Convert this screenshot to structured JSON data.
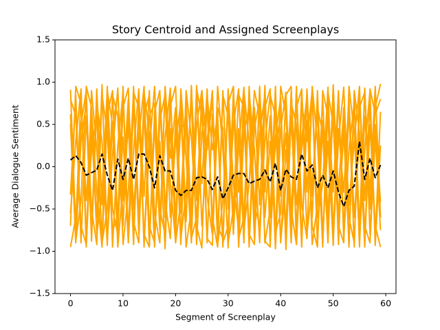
{
  "chart_data": {
    "type": "line",
    "title": "Story Centroid and Assigned Screenplays",
    "x_label": "Segment of Screenplay",
    "y_label": "Average Dialogue Sentiment",
    "x": [
      0,
      1,
      2,
      3,
      4,
      5,
      6,
      7,
      8,
      9,
      10,
      11,
      12,
      13,
      14,
      15,
      16,
      17,
      18,
      19,
      20,
      21,
      22,
      23,
      24,
      25,
      26,
      27,
      28,
      29,
      30,
      31,
      32,
      33,
      34,
      35,
      36,
      37,
      38,
      39,
      40,
      41,
      42,
      43,
      44,
      45,
      46,
      47,
      48,
      49,
      50,
      51,
      52,
      53,
      54,
      55,
      56,
      57,
      58,
      59
    ],
    "xlim": [
      -2.95,
      61.95
    ],
    "xticks": [
      0,
      10,
      20,
      30,
      40,
      50,
      60
    ],
    "ylim": [
      -1.5,
      1.5
    ],
    "yticks": [
      {
        "value": -1.5,
        "label": "−1.5"
      },
      {
        "value": -1,
        "label": "−1.0"
      },
      {
        "value": -0.5,
        "label": "−0.5"
      },
      {
        "value": 0,
        "label": "0.0"
      },
      {
        "value": 0.5,
        "label": "0.5"
      },
      {
        "value": 1,
        "label": "1.0"
      },
      {
        "value": 1.5,
        "label": "1.5"
      }
    ],
    "grid": false,
    "series": [
      {
        "color": "#ffa500",
        "values": [
          0.91,
          -0.75,
          0.88,
          -0.95,
          0.42,
          -0.6,
          0.97,
          -0.88,
          0.15,
          0.93,
          -0.7,
          0.65,
          -0.92,
          0.8,
          -0.35,
          0.9,
          -0.85,
          0.3,
          -0.97,
          0.72,
          0.95,
          -0.55,
          0.6,
          -0.9,
          0.85,
          -0.2,
          0.92,
          -0.78,
          0.5,
          -0.95,
          0.88,
          -0.65,
          0.2,
          0.94,
          -0.88,
          0.7,
          -0.45,
          0.96,
          -0.92,
          0.35,
          0.82,
          -0.98,
          0.6,
          -0.75,
          0.9,
          -0.3,
          0.87,
          -0.93,
          0.55,
          -0.8,
          0.97,
          -0.6,
          0.4,
          -0.9,
          0.85,
          -0.72,
          0.93,
          -0.5,
          0.7,
          0.98
        ]
      },
      {
        "color": "#ffa500",
        "values": [
          -0.33,
          0.85,
          -0.9,
          0.6,
          -0.8,
          0.92,
          -0.45,
          0.78,
          -0.95,
          0.25,
          0.88,
          -0.82,
          0.95,
          -0.6,
          0.7,
          -0.93,
          0.5,
          -0.75,
          0.9,
          -0.2,
          -0.88,
          0.8,
          -0.65,
          0.96,
          -0.4,
          0.75,
          -0.9,
          0.62,
          -0.85,
          0.9,
          -0.5,
          0.83,
          -0.95,
          0.4,
          0.7,
          -0.85,
          0.92,
          -0.3,
          0.6,
          -0.97,
          0.45,
          0.88,
          -0.7,
          0.95,
          -0.88,
          0.55,
          -0.6,
          0.9,
          -0.8,
          0.3,
          -0.93,
          0.85,
          -0.75,
          0.68,
          -0.95,
          0.9,
          -0.4,
          0.75,
          -0.88,
          0.65
        ]
      },
      {
        "color": "#ffa500",
        "values": [
          0.8,
          0.6,
          -0.7,
          -0.92,
          0.9,
          0.2,
          -0.85,
          0.95,
          -0.5,
          -0.8,
          0.7,
          0.93,
          -0.65,
          -0.9,
          0.88,
          0.4,
          -0.95,
          0.82,
          -0.6,
          0.45,
          -0.75,
          0.92,
          0.1,
          -0.88,
          0.96,
          -0.7,
          0.3,
          0.9,
          -0.93,
          -0.4,
          0.75,
          0.95,
          -0.85,
          -0.6,
          0.88,
          0.2,
          -0.9,
          0.7,
          0.92,
          -0.78,
          -0.55,
          0.85,
          0.95,
          -0.92,
          0.35,
          0.8,
          -0.7,
          -0.95,
          0.9,
          0.6,
          -0.85,
          0.3,
          0.94,
          -0.6,
          -0.9,
          0.7,
          0.88,
          -0.8,
          0.5,
          -0.42
        ]
      },
      {
        "color": "#ffa500",
        "values": [
          -0.95,
          -0.6,
          0.5,
          0.9,
          -0.88,
          0.75,
          0.3,
          -0.93,
          0.85,
          0.6,
          -0.92,
          -0.3,
          0.88,
          0.7,
          -0.8,
          -0.95,
          0.65,
          0.9,
          -0.4,
          -0.85,
          0.55,
          -0.92,
          0.9,
          0.35,
          -0.7,
          -0.96,
          0.85,
          0.2,
          0.62,
          -0.9,
          -0.7,
          0.5,
          0.92,
          -0.75,
          -0.2,
          0.9,
          0.6,
          -0.88,
          -0.95,
          0.8,
          -0.35,
          0.4,
          -0.9,
          0.7,
          0.92,
          -0.8,
          -0.2,
          0.65,
          -0.95,
          0.88,
          0.5,
          -0.7,
          -0.9,
          0.95,
          0.4,
          -0.85,
          0.2,
          0.9,
          -0.93,
          0.25
        ]
      },
      {
        "color": "#ffa500",
        "values": [
          0.62,
          -0.9,
          0.3,
          0.75,
          -0.5,
          -0.92,
          0.85,
          0.4,
          -0.75,
          -0.6,
          0.95,
          -0.88,
          0.2,
          0.92,
          -0.95,
          0.6,
          0.75,
          -0.7,
          0.35,
          0.93,
          -0.9,
          -0.4,
          0.8,
          -0.65,
          0.5,
          0.9,
          -0.85,
          -0.93,
          0.7,
          0.45,
          -0.96,
          0.9,
          -0.3,
          0.6,
          -0.8,
          -0.92,
          0.4,
          0.85,
          -0.6,
          0.95,
          -0.88,
          -0.2,
          0.75,
          0.5,
          -0.95,
          0.92,
          -0.35,
          0.7,
          0.4,
          -0.9,
          0.8,
          -0.92,
          0.6,
          -0.45,
          0.3,
          0.95,
          -0.9,
          0.5,
          -0.7,
          -0.95
        ]
      },
      {
        "color": "#ffa500",
        "values": [
          -0.7,
          0.95,
          0.75,
          -0.4,
          0.6,
          -0.8,
          -0.3,
          0.9,
          0.5,
          -0.95,
          -0.2,
          0.8,
          -0.5,
          0.35,
          0.95,
          -0.7,
          -0.9,
          0.55,
          0.85,
          -0.6,
          0.3,
          0.75,
          -0.95,
          -0.5,
          0.92,
          0.6,
          -0.35,
          -0.8,
          0.95,
          0.2,
          -0.9,
          -0.5,
          0.85,
          0.7,
          -0.95,
          0.45,
          0.8,
          -0.6,
          0.3,
          -0.85,
          0.95,
          0.6,
          -0.5,
          -0.92,
          0.75,
          0.3,
          0.9,
          -0.6,
          -0.2,
          0.94,
          -0.75,
          0.45,
          -0.3,
          0.8,
          -0.6,
          0.35,
          -0.95,
          0.92,
          0.62,
          0.8
        ]
      },
      {
        "color": "#ffa500",
        "values": [
          0.5,
          -0.88,
          -0.4,
          0.95,
          0.7,
          -0.3,
          -0.95,
          0.6,
          0.9,
          -0.7,
          0.35,
          -0.9,
          0.75,
          -0.8,
          0.6,
          0.85,
          -0.55,
          -0.9,
          0.95,
          0.1,
          0.7,
          -0.85,
          -0.3,
          0.8,
          -0.92,
          0.4,
          0.7,
          -0.6,
          -0.95,
          0.85,
          0.6,
          -0.8,
          0.45,
          -0.9,
          0.95,
          -0.45,
          -0.7,
          0.3,
          0.85,
          0.6,
          -0.9,
          0.2,
          -0.6,
          0.9,
          -0.45,
          -0.85,
          0.95,
          0.3,
          -0.92,
          0.7,
          -0.3,
          0.9,
          -0.85,
          0.2,
          0.75,
          -0.95,
          0.6,
          -0.3,
          0.95,
          -0.6
        ]
      },
      {
        "color": "#ffa500",
        "values": [
          -0.55,
          0.3,
          0.92,
          -0.8,
          0.2,
          0.6,
          -0.9,
          -0.5,
          0.45,
          0.88,
          -0.4,
          0.5,
          -0.85,
          0.65,
          -0.9,
          0.2,
          0.95,
          -0.5,
          -0.8,
          0.9,
          -0.6,
          0.5,
          0.45,
          -0.85,
          -0.6,
          0.9,
          0.2,
          0.8,
          -0.7,
          -0.85,
          0.92,
          -0.2,
          -0.75,
          0.9,
          0.3,
          -0.65,
          0.95,
          -0.9,
          -0.5,
          0.25,
          0.6,
          -0.75,
          0.9,
          -0.45,
          0.2,
          0.85,
          -0.92,
          -0.45,
          0.8,
          -0.6,
          0.92,
          -0.3,
          0.7,
          -0.95,
          0.9,
          0.4,
          -0.7,
          -0.9,
          0.35,
          -0.75
        ]
      },
      {
        "color": "#000000",
        "linestyle": "dashed",
        "values": [
          0.08,
          0.13,
          0.05,
          -0.1,
          -0.07,
          -0.04,
          0.15,
          -0.1,
          -0.28,
          0.09,
          -0.15,
          0.1,
          -0.15,
          0.15,
          0.15,
          0.0,
          -0.25,
          0.13,
          -0.05,
          -0.05,
          -0.28,
          -0.34,
          -0.28,
          -0.28,
          -0.13,
          -0.12,
          -0.15,
          -0.27,
          -0.12,
          -0.38,
          -0.25,
          -0.1,
          -0.08,
          -0.08,
          -0.2,
          -0.17,
          -0.15,
          -0.04,
          -0.18,
          0.04,
          -0.28,
          -0.03,
          -0.12,
          -0.15,
          0.15,
          -0.05,
          0.02,
          -0.25,
          -0.1,
          -0.25,
          -0.05,
          -0.3,
          -0.47,
          -0.28,
          -0.23,
          0.3,
          -0.15,
          0.1,
          -0.13,
          0.02
        ]
      }
    ]
  }
}
